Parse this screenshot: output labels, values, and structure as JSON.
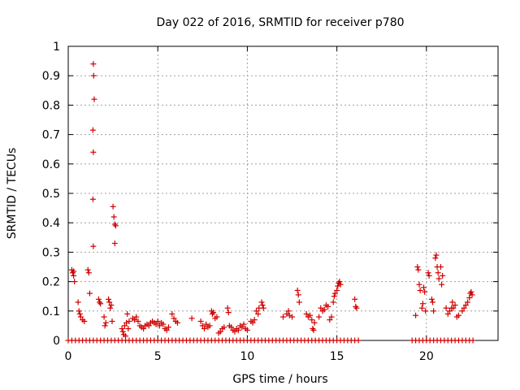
{
  "chart_data": {
    "type": "scatter",
    "title": "Day 022 of 2016, SRMTID for receiver p780",
    "xlabel": "GPS time / hours",
    "ylabel": "SRMTID / TECUs",
    "xlim": [
      0,
      24
    ],
    "ylim": [
      0,
      1
    ],
    "xticks": [
      0,
      5,
      10,
      15,
      20
    ],
    "yticks": [
      0,
      0.1,
      0.2,
      0.3,
      0.4,
      0.5,
      0.6,
      0.7,
      0.8,
      0.9,
      1
    ],
    "grid": true,
    "marker": "plus",
    "color": "#d00000",
    "series": [
      {
        "points": [
          [
            0.2,
            0.24
          ],
          [
            0.25,
            0.23
          ],
          [
            0.3,
            0.22
          ],
          [
            0.35,
            0.2
          ],
          [
            0.3,
            0.235
          ],
          [
            0.55,
            0.13
          ],
          [
            0.6,
            0.1
          ],
          [
            0.65,
            0.09
          ],
          [
            0.7,
            0.08
          ],
          [
            0.8,
            0.07
          ],
          [
            0.9,
            0.065
          ],
          [
            1.1,
            0.24
          ],
          [
            1.15,
            0.23
          ],
          [
            1.2,
            0.16
          ],
          [
            1.4,
            0.94
          ],
          [
            1.42,
            0.9
          ],
          [
            1.45,
            0.82
          ],
          [
            1.38,
            0.715
          ],
          [
            1.4,
            0.64
          ],
          [
            1.38,
            0.48
          ],
          [
            1.4,
            0.32
          ],
          [
            1.7,
            0.14
          ],
          [
            1.75,
            0.13
          ],
          [
            1.8,
            0.125
          ],
          [
            2.0,
            0.08
          ],
          [
            2.05,
            0.05
          ],
          [
            2.1,
            0.06
          ],
          [
            2.25,
            0.14
          ],
          [
            2.3,
            0.13
          ],
          [
            2.35,
            0.11
          ],
          [
            2.4,
            0.12
          ],
          [
            2.45,
            0.065
          ],
          [
            2.5,
            0.455
          ],
          [
            2.55,
            0.42
          ],
          [
            2.6,
            0.395
          ],
          [
            2.65,
            0.39
          ],
          [
            2.6,
            0.33
          ],
          [
            3.0,
            0.04
          ],
          [
            3.05,
            0.03
          ],
          [
            3.1,
            0.02
          ],
          [
            3.15,
            0.05
          ],
          [
            3.2,
            0.015
          ],
          [
            3.25,
            0.06
          ],
          [
            3.3,
            0.09
          ],
          [
            3.35,
            0.04
          ],
          [
            3.4,
            0.065
          ],
          [
            3.6,
            0.075
          ],
          [
            3.7,
            0.07
          ],
          [
            3.8,
            0.08
          ],
          [
            3.9,
            0.065
          ],
          [
            4.0,
            0.05
          ],
          [
            4.1,
            0.045
          ],
          [
            4.2,
            0.04
          ],
          [
            4.3,
            0.05
          ],
          [
            4.4,
            0.055
          ],
          [
            4.5,
            0.05
          ],
          [
            4.6,
            0.06
          ],
          [
            4.7,
            0.065
          ],
          [
            4.8,
            0.06
          ],
          [
            4.9,
            0.055
          ],
          [
            5.0,
            0.065
          ],
          [
            5.1,
            0.05
          ],
          [
            5.2,
            0.06
          ],
          [
            5.3,
            0.055
          ],
          [
            5.4,
            0.04
          ],
          [
            5.5,
            0.035
          ],
          [
            5.6,
            0.045
          ],
          [
            5.8,
            0.09
          ],
          [
            5.9,
            0.075
          ],
          [
            6.0,
            0.065
          ],
          [
            6.1,
            0.06
          ],
          [
            6.9,
            0.075
          ],
          [
            7.4,
            0.065
          ],
          [
            7.5,
            0.05
          ],
          [
            7.6,
            0.04
          ],
          [
            7.7,
            0.055
          ],
          [
            7.8,
            0.045
          ],
          [
            7.9,
            0.05
          ],
          [
            8.0,
            0.1
          ],
          [
            8.05,
            0.09
          ],
          [
            8.1,
            0.095
          ],
          [
            8.2,
            0.075
          ],
          [
            8.3,
            0.08
          ],
          [
            8.4,
            0.025
          ],
          [
            8.5,
            0.03
          ],
          [
            8.6,
            0.04
          ],
          [
            8.7,
            0.045
          ],
          [
            8.9,
            0.11
          ],
          [
            8.95,
            0.095
          ],
          [
            9.0,
            0.05
          ],
          [
            9.1,
            0.045
          ],
          [
            9.2,
            0.035
          ],
          [
            9.3,
            0.03
          ],
          [
            9.4,
            0.04
          ],
          [
            9.5,
            0.035
          ],
          [
            9.6,
            0.05
          ],
          [
            9.7,
            0.045
          ],
          [
            9.8,
            0.055
          ],
          [
            9.9,
            0.04
          ],
          [
            10.0,
            0.035
          ],
          [
            10.2,
            0.065
          ],
          [
            10.3,
            0.06
          ],
          [
            10.4,
            0.07
          ],
          [
            10.5,
            0.1
          ],
          [
            10.6,
            0.09
          ],
          [
            10.65,
            0.11
          ],
          [
            10.8,
            0.13
          ],
          [
            10.85,
            0.12
          ],
          [
            10.9,
            0.11
          ],
          [
            12.0,
            0.08
          ],
          [
            12.2,
            0.09
          ],
          [
            12.3,
            0.1
          ],
          [
            12.35,
            0.085
          ],
          [
            12.5,
            0.08
          ],
          [
            12.8,
            0.17
          ],
          [
            12.85,
            0.155
          ],
          [
            12.9,
            0.13
          ],
          [
            13.3,
            0.09
          ],
          [
            13.4,
            0.08
          ],
          [
            13.5,
            0.085
          ],
          [
            13.6,
            0.07
          ],
          [
            13.65,
            0.04
          ],
          [
            13.7,
            0.035
          ],
          [
            13.75,
            0.06
          ],
          [
            14.0,
            0.08
          ],
          [
            14.1,
            0.11
          ],
          [
            14.2,
            0.1
          ],
          [
            14.3,
            0.105
          ],
          [
            14.4,
            0.12
          ],
          [
            14.5,
            0.115
          ],
          [
            14.6,
            0.07
          ],
          [
            14.7,
            0.08
          ],
          [
            14.8,
            0.13
          ],
          [
            14.85,
            0.15
          ],
          [
            14.9,
            0.16
          ],
          [
            15.0,
            0.17
          ],
          [
            15.05,
            0.185
          ],
          [
            15.1,
            0.195
          ],
          [
            15.15,
            0.2
          ],
          [
            15.2,
            0.19
          ],
          [
            16.0,
            0.14
          ],
          [
            16.05,
            0.115
          ],
          [
            16.1,
            0.11
          ],
          [
            19.4,
            0.085
          ],
          [
            19.5,
            0.25
          ],
          [
            19.55,
            0.24
          ],
          [
            19.6,
            0.19
          ],
          [
            19.65,
            0.17
          ],
          [
            19.75,
            0.11
          ],
          [
            19.8,
            0.125
          ],
          [
            19.85,
            0.18
          ],
          [
            19.9,
            0.165
          ],
          [
            19.95,
            0.1
          ],
          [
            20.1,
            0.23
          ],
          [
            20.15,
            0.22
          ],
          [
            20.3,
            0.14
          ],
          [
            20.35,
            0.13
          ],
          [
            20.4,
            0.1
          ],
          [
            20.5,
            0.28
          ],
          [
            20.55,
            0.29
          ],
          [
            20.6,
            0.25
          ],
          [
            20.65,
            0.23
          ],
          [
            20.7,
            0.21
          ],
          [
            20.8,
            0.25
          ],
          [
            20.85,
            0.19
          ],
          [
            20.9,
            0.22
          ],
          [
            21.1,
            0.11
          ],
          [
            21.2,
            0.09
          ],
          [
            21.3,
            0.1
          ],
          [
            21.4,
            0.11
          ],
          [
            21.45,
            0.13
          ],
          [
            21.5,
            0.11
          ],
          [
            21.6,
            0.12
          ],
          [
            21.7,
            0.08
          ],
          [
            21.8,
            0.085
          ],
          [
            22.0,
            0.1
          ],
          [
            22.1,
            0.11
          ],
          [
            22.2,
            0.12
          ],
          [
            22.3,
            0.13
          ],
          [
            22.4,
            0.145
          ],
          [
            22.45,
            0.16
          ],
          [
            22.5,
            0.165
          ],
          [
            22.55,
            0.155
          ]
        ],
        "zero_segments": [
          [
            0,
            16.2
          ],
          [
            19.2,
            22.6
          ]
        ],
        "zero_step": 0.2
      }
    ]
  }
}
